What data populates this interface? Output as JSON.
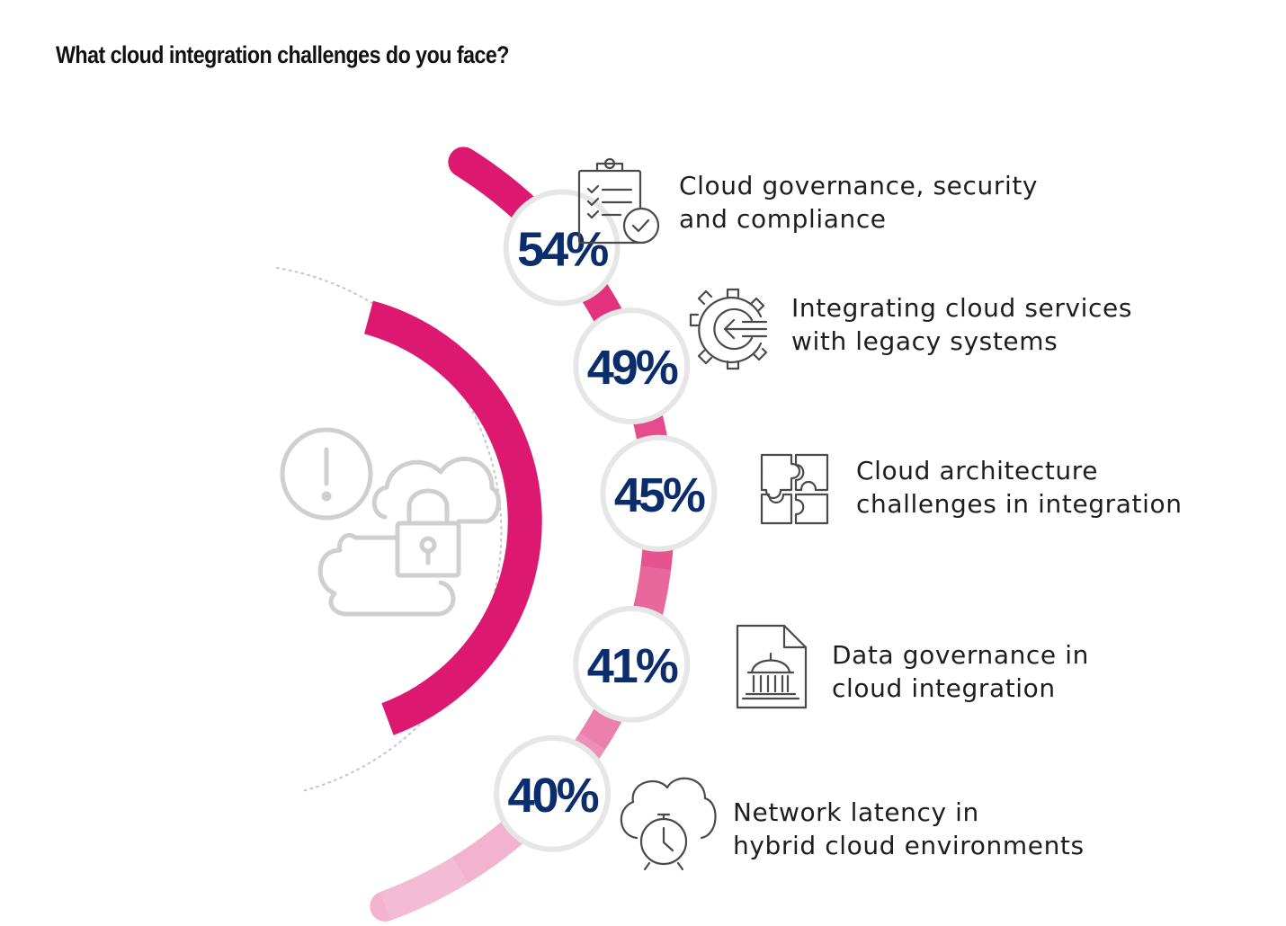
{
  "chart_data": {
    "type": "radial-bar",
    "title": "What cloud integration challenges do you face?",
    "categories": [
      [
        "Cloud governance, security",
        "and compliance"
      ],
      [
        "Integrating cloud services",
        "with legacy systems"
      ],
      [
        "Cloud architecture",
        "challenges in integration"
      ],
      [
        "Data governance in",
        "cloud integration"
      ],
      [
        "Network latency in",
        "hybrid cloud environments"
      ]
    ],
    "values": [
      54,
      49,
      45,
      41,
      40
    ],
    "value_labels": [
      "54%",
      "49%",
      "45%",
      "41%",
      "40%"
    ],
    "icons": [
      "clipboard-check-icon",
      "gear-arrow-icon",
      "puzzle-icon",
      "document-building-icon",
      "cloud-stopwatch-icon"
    ],
    "center_icon": "cloud-lock-alert-icon",
    "colors": {
      "accent": "#dc1870",
      "segments": [
        "#dc1870",
        "#e3337f",
        "#e6548f",
        "#eb80ad",
        "#f3b3cf"
      ],
      "value_text": "#0c2d6b",
      "badge_ring": "#e6e6e6",
      "icon_stroke": "#4a4a4a",
      "center_icon_stroke": "#cfcfcf"
    }
  }
}
